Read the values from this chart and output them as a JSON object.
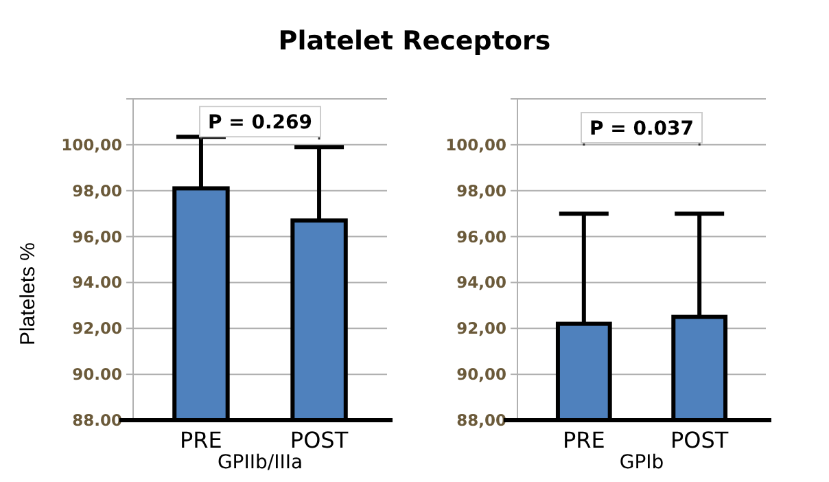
{
  "chart_data": [
    {
      "type": "bar",
      "title": "Platelet Receptors",
      "ylabel": "Platelets %",
      "xlabel": "GPIIb/IIIa",
      "categories": [
        "PRE",
        "POST"
      ],
      "values": [
        98.1,
        96.7
      ],
      "color": "#4f81bd",
      "errors": [
        [
          98.1,
          100.35
        ],
        [
          96.7,
          99.9
        ]
      ],
      "ylim": [
        88,
        102
      ],
      "yticks": [
        {
          "value": 88,
          "label": "88.00"
        },
        {
          "value": 90,
          "label": "90.00"
        },
        {
          "value": 92,
          "label": "92,00"
        },
        {
          "value": 94,
          "label": "94.00"
        },
        {
          "value": 96,
          "label": "96,00"
        },
        {
          "value": 98,
          "label": "98,00"
        },
        {
          "value": 100,
          "label": "100,00"
        },
        {
          "value": 102,
          "label": null
        }
      ],
      "grid": "y",
      "annotations": [
        "P = 0.269"
      ]
    },
    {
      "type": "bar",
      "xlabel": "GPIb",
      "categories": [
        "PRE",
        "POST"
      ],
      "values": [
        92.2,
        92.5
      ],
      "color": "#4f81bd",
      "errors": [
        [
          92.2,
          97.0
        ],
        [
          92.5,
          97.0
        ]
      ],
      "ylim": [
        88,
        102
      ],
      "yticks": [
        {
          "value": 88,
          "label": "88,00"
        },
        {
          "value": 90,
          "label": "90,00"
        },
        {
          "value": 92,
          "label": "92,00"
        },
        {
          "value": 94,
          "label": "94,00"
        },
        {
          "value": 96,
          "label": "96,00"
        },
        {
          "value": 98,
          "label": "98,00"
        },
        {
          "value": 100,
          "label": "100,00"
        },
        {
          "value": 102,
          "label": null
        }
      ],
      "grid": "y",
      "annotations": [
        "P = 0.037"
      ]
    }
  ]
}
